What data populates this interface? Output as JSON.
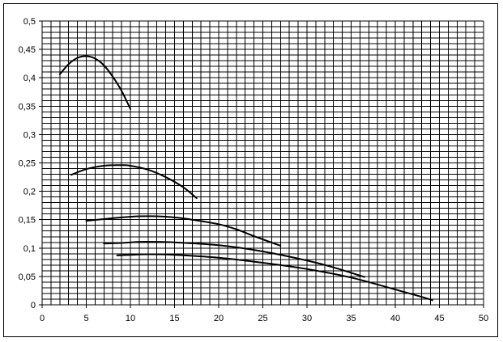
{
  "chart_data": {
    "type": "line",
    "title": "",
    "xlabel": "",
    "ylabel": "",
    "xlim": [
      0,
      50
    ],
    "ylim": [
      0,
      0.5
    ],
    "grid": true,
    "legend": "none",
    "x_ticks": [
      "0",
      "5",
      "10",
      "15",
      "20",
      "25",
      "30",
      "35",
      "40",
      "45",
      "50"
    ],
    "y_ticks": [
      "0",
      "0,05",
      "0,1",
      "0,15",
      "0,2",
      "0,25",
      "0,3",
      "0,35",
      "0,4",
      "0,45",
      "0,5"
    ],
    "colors": {
      "series": "#000000",
      "grid": "#000000",
      "frame": "#000000"
    },
    "series": [
      {
        "x": [
          2,
          3,
          4,
          5,
          6,
          7,
          8,
          9,
          10
        ],
        "y": [
          0.406,
          0.424,
          0.435,
          0.438,
          0.434,
          0.422,
          0.402,
          0.377,
          0.345
        ]
      },
      {
        "x": [
          3.3,
          5,
          7,
          9,
          10,
          12,
          14,
          16,
          17.5
        ],
        "y": [
          0.229,
          0.239,
          0.245,
          0.246,
          0.245,
          0.238,
          0.225,
          0.207,
          0.188
        ]
      },
      {
        "x": [
          5,
          7,
          9,
          11,
          13,
          15,
          17,
          20,
          22,
          24,
          27
        ],
        "y": [
          0.148,
          0.151,
          0.154,
          0.156,
          0.156,
          0.154,
          0.15,
          0.142,
          0.133,
          0.121,
          0.104
        ]
      },
      {
        "x": [
          7,
          9,
          11,
          13,
          15,
          20,
          25,
          30,
          33,
          36.5
        ],
        "y": [
          0.108,
          0.109,
          0.111,
          0.111,
          0.11,
          0.105,
          0.094,
          0.078,
          0.066,
          0.049
        ]
      },
      {
        "x": [
          8.5,
          10,
          12,
          15,
          20,
          25,
          30,
          35,
          40,
          43,
          44.2
        ],
        "y": [
          0.087,
          0.088,
          0.089,
          0.088,
          0.083,
          0.074,
          0.063,
          0.048,
          0.027,
          0.014,
          0.008
        ]
      }
    ]
  }
}
